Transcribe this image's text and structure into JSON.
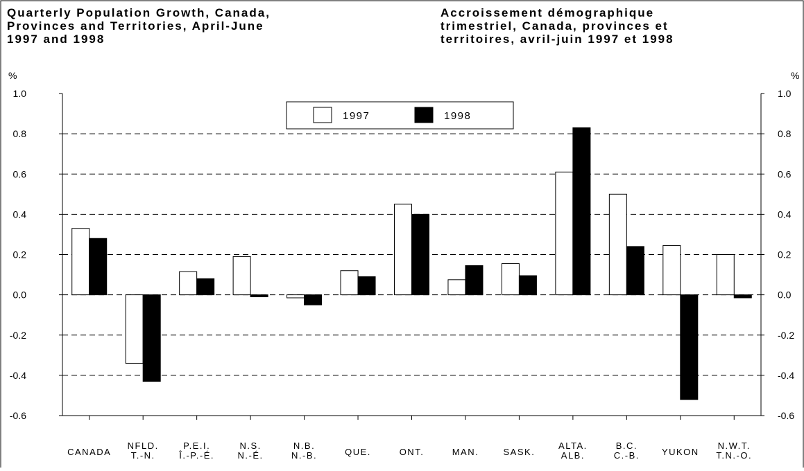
{
  "chart_data": {
    "type": "bar",
    "title": [
      "Quarterly Population Growth, Canada,",
      "Provinces and Territories, April-June",
      "1997 and 1998"
    ],
    "subtitle": [
      "Accroissement démographique",
      "trimestriel, Canada, provinces et",
      "territoires, avril-juin 1997 et 1998"
    ],
    "ylabel": "%",
    "y2label": "%",
    "categories": [
      [
        "CANADA"
      ],
      [
        "NFLD.",
        "T.-N."
      ],
      [
        "P.E.I.",
        "Î.-P.-É."
      ],
      [
        "N.S.",
        "N.-É."
      ],
      [
        "N.B.",
        "N.-B."
      ],
      [
        "QUE."
      ],
      [
        "ONT."
      ],
      [
        "MAN."
      ],
      [
        "SASK."
      ],
      [
        "ALTA.",
        "ALB."
      ],
      [
        "B.C.",
        "C.-B."
      ],
      [
        "YUKON"
      ],
      [
        "N.W.T.",
        "T.N.-O."
      ]
    ],
    "series": [
      {
        "name": "1997",
        "color": "#ffffff",
        "values": [
          0.33,
          -0.34,
          0.115,
          0.19,
          -0.015,
          0.12,
          0.45,
          0.075,
          0.155,
          0.61,
          0.5,
          0.245,
          0.2
        ]
      },
      {
        "name": "1998",
        "color": "#000000",
        "values": [
          0.28,
          -0.43,
          0.08,
          -0.01,
          -0.05,
          0.09,
          0.4,
          0.145,
          0.095,
          0.83,
          0.24,
          -0.52,
          -0.015
        ]
      }
    ],
    "ylim": [
      -0.6,
      1.0
    ],
    "yticks": [
      {
        "value": 1.0,
        "label": "1.0"
      },
      0.8,
      0.6,
      0.4,
      0.2,
      {
        "value": 0.0,
        "label": "0.0"
      },
      -0.2,
      -0.4,
      -0.6
    ],
    "y2lim": [
      -0.6,
      1.0
    ],
    "y2ticks": [
      {
        "value": 1.0,
        "label": "1.0"
      },
      0.8,
      0.6,
      0.4,
      0.2,
      {
        "value": 0.0,
        "label": "0.0"
      },
      -0.2,
      -0.4,
      -0.6
    ],
    "grid": true,
    "legend": "top"
  }
}
